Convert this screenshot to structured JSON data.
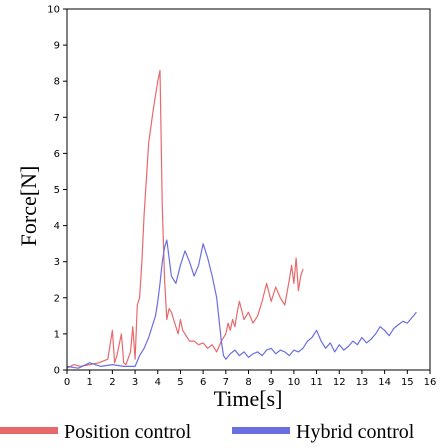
{
  "chart_data": {
    "type": "line",
    "title": "",
    "xlabel": "Time[s]",
    "ylabel": "Force[N]",
    "xlim": [
      0,
      16
    ],
    "ylim": [
      0,
      10
    ],
    "xticks": [
      "0",
      "1",
      "2",
      "3",
      "4",
      "5",
      "6",
      "7",
      "8",
      "9",
      "10",
      "11",
      "12",
      "13",
      "14",
      "15",
      "16"
    ],
    "yticks": [
      "0",
      "1",
      "2",
      "3",
      "4",
      "5",
      "6",
      "7",
      "8",
      "9",
      "10"
    ],
    "grid": false,
    "legend_position": "bottom",
    "series": [
      {
        "name": "Position control",
        "color": "#e8696c",
        "x": [
          0.0,
          0.3,
          0.6,
          1.0,
          1.4,
          1.8,
          2.0,
          2.1,
          2.2,
          2.4,
          2.5,
          2.6,
          2.8,
          2.9,
          3.0,
          3.1,
          3.2,
          3.3,
          3.4,
          3.6,
          3.8,
          4.0,
          4.1,
          4.2,
          4.3,
          4.4,
          4.5,
          4.6,
          4.7,
          4.9,
          5.0,
          5.1,
          5.2,
          5.3,
          5.4,
          5.6,
          5.8,
          6.0,
          6.2,
          6.4,
          6.6,
          6.8,
          7.0,
          7.1,
          7.2,
          7.3,
          7.4,
          7.5,
          7.6,
          7.8,
          8.0,
          8.2,
          8.4,
          8.6,
          8.8,
          9.0,
          9.2,
          9.4,
          9.6,
          9.8,
          9.9,
          10.0,
          10.1,
          10.2,
          10.3,
          10.4
        ],
        "values": [
          0.05,
          0.15,
          0.1,
          0.15,
          0.2,
          0.3,
          1.1,
          0.2,
          0.4,
          1.0,
          0.2,
          0.15,
          0.5,
          1.2,
          0.3,
          1.8,
          2.0,
          3.0,
          4.3,
          6.3,
          7.2,
          8.0,
          8.3,
          4.5,
          2.5,
          1.4,
          1.7,
          1.6,
          1.4,
          1.0,
          1.4,
          1.1,
          1.0,
          0.9,
          0.8,
          0.8,
          0.7,
          0.75,
          0.6,
          0.7,
          0.5,
          0.8,
          1.0,
          1.3,
          1.1,
          1.4,
          1.2,
          1.6,
          1.9,
          1.4,
          1.6,
          1.3,
          1.5,
          1.9,
          2.4,
          1.9,
          2.3,
          2.0,
          1.8,
          2.5,
          2.9,
          2.4,
          3.1,
          2.2,
          2.6,
          2.8
        ]
      },
      {
        "name": "Hybrid control",
        "color": "#6a6fe0",
        "x": [
          0.0,
          0.5,
          1.0,
          1.5,
          2.0,
          2.5,
          3.0,
          3.2,
          3.4,
          3.6,
          3.8,
          3.9,
          4.0,
          4.1,
          4.2,
          4.3,
          4.4,
          4.5,
          4.6,
          4.8,
          5.0,
          5.2,
          5.4,
          5.6,
          5.8,
          6.0,
          6.2,
          6.4,
          6.6,
          6.8,
          6.9,
          7.0,
          7.2,
          7.4,
          7.6,
          7.8,
          8.0,
          8.2,
          8.4,
          8.6,
          8.8,
          9.0,
          9.2,
          9.4,
          9.6,
          9.8,
          10.0,
          10.2,
          10.4,
          10.6,
          10.8,
          11.0,
          11.2,
          11.4,
          11.6,
          11.8,
          12.0,
          12.2,
          12.4,
          12.6,
          12.8,
          13.0,
          13.2,
          13.4,
          13.6,
          13.8,
          14.0,
          14.2,
          14.4,
          14.6,
          14.8,
          15.0,
          15.2,
          15.4
        ],
        "values": [
          0.1,
          0.05,
          0.2,
          0.1,
          0.15,
          0.1,
          0.1,
          0.4,
          0.6,
          0.9,
          1.3,
          1.5,
          1.9,
          2.4,
          3.0,
          3.4,
          3.6,
          3.1,
          2.6,
          2.4,
          2.9,
          3.3,
          3.0,
          2.6,
          2.9,
          3.5,
          3.1,
          2.6,
          2.0,
          0.8,
          0.4,
          0.3,
          0.45,
          0.55,
          0.4,
          0.5,
          0.35,
          0.45,
          0.5,
          0.4,
          0.55,
          0.6,
          0.45,
          0.55,
          0.5,
          0.4,
          0.55,
          0.5,
          0.6,
          0.8,
          0.9,
          1.1,
          0.8,
          0.6,
          0.75,
          0.5,
          0.7,
          0.55,
          0.65,
          0.8,
          0.7,
          0.9,
          0.75,
          0.85,
          1.0,
          1.2,
          1.1,
          0.95,
          1.15,
          1.25,
          1.35,
          1.3,
          1.45,
          1.6
        ]
      }
    ]
  }
}
